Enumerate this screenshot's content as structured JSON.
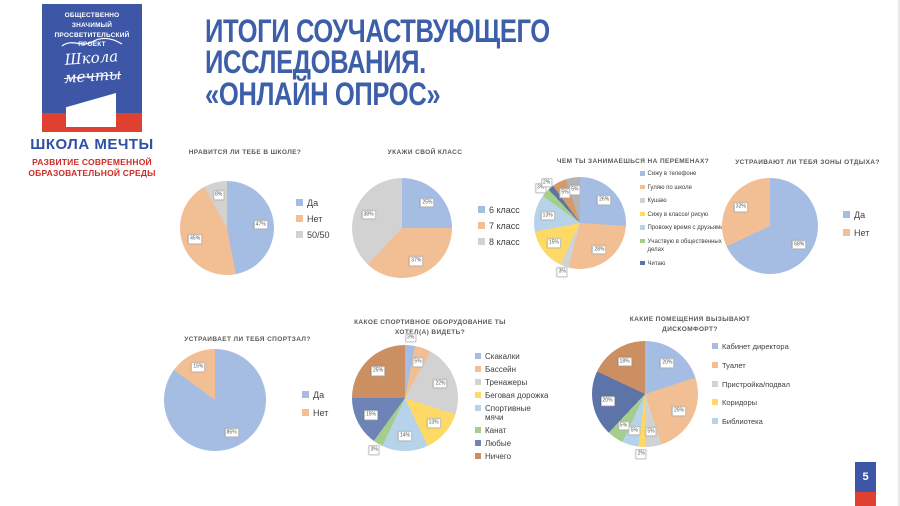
{
  "slide": {
    "title_line1": "ИТОГИ СОУЧАСТВУЮЩЕГО ИССЛЕДОВАНИЯ.",
    "title_line2": "«ОНЛАЙН ОПРОС»",
    "page_number": "5"
  },
  "logo": {
    "project_label": "ОБЩЕСТВЕННО ЗНАЧИМЫЙ ПРОСВЕТИТЕЛЬСКИЙ ПРОЕКТ",
    "script_line1": "Школа",
    "script_line2": "мечты",
    "brand": "ШКОЛА МЕЧТЫ",
    "tagline": "РАЗВИТИЕ СОВРЕМЕННОЙ ОБРАЗОВАТЕЛЬНОЙ СРЕДЫ"
  },
  "colors": {
    "accent_blue": "#3D57A6",
    "accent_red": "#E04030",
    "title_blue": "#3D5FA9",
    "brand_red": "#CE2B26"
  },
  "chart_data": [
    {
      "type": "pie",
      "title": "НРАВИТСЯ ЛИ ТЕБЕ В ШКОЛЕ?",
      "legend_position": "right",
      "slices": [
        {
          "label": "Да",
          "value": 47,
          "color": "#A6BDE3"
        },
        {
          "label": "Нет",
          "value": 45,
          "color": "#F2BE93"
        },
        {
          "label": "50/50",
          "value": 8,
          "color": "#D2D2D2"
        }
      ]
    },
    {
      "type": "pie",
      "title": "УКАЖИ СВОЙ КЛАСС",
      "legend_position": "right",
      "slices": [
        {
          "label": "6 класс",
          "value": 25,
          "color": "#A6BDE3"
        },
        {
          "label": "7 класс",
          "value": 37,
          "color": "#F2BE93"
        },
        {
          "label": "8 класс",
          "value": 38,
          "color": "#D2D2D2"
        }
      ]
    },
    {
      "type": "pie",
      "title": "ЧЕМ ТЫ ЗАНИМАЕШЬСЯ НА ПЕРЕМЕНАХ?",
      "legend_position": "right",
      "slices": [
        {
          "label": "Сижу в телефоне",
          "value": 26,
          "color": "#A6BDE3"
        },
        {
          "label": "Гуляю по школе",
          "value": 28,
          "color": "#F2BE93"
        },
        {
          "label": "Кушаю",
          "value": 3,
          "color": "#D2D2D2"
        },
        {
          "label": "Сижу в классе/ рисую",
          "value": 15,
          "color": "#FFD966"
        },
        {
          "label": "Провожу время с друзьями",
          "value": 13,
          "color": "#B7D3EA"
        },
        {
          "label": "Участвую в общественных делах",
          "value": 3,
          "color": "#A5CE8D"
        },
        {
          "label": "Читаю",
          "value": 2,
          "color": "#5C74A8"
        },
        {
          "label": "",
          "value": 5,
          "color": "#D49A6A"
        },
        {
          "label": "",
          "value": 5,
          "color": "#B3B3B3"
        }
      ]
    },
    {
      "type": "pie",
      "title": "УСТРАИВАЮТ ЛИ ТЕБЯ ЗОНЫ ОТДЫХА?",
      "legend_position": "right",
      "slices": [
        {
          "label": "Да",
          "value": 68,
          "color": "#A6BDE3"
        },
        {
          "label": "Нет",
          "value": 32,
          "color": "#F2BE93"
        }
      ]
    },
    {
      "type": "pie",
      "title": "УСТРАИВАЕТ ЛИ ТЕБЯ СПОРТЗАЛ?",
      "legend_position": "right",
      "slices": [
        {
          "label": "Да",
          "value": 85,
          "color": "#A6BDE3"
        },
        {
          "label": "Нет",
          "value": 15,
          "color": "#F2BE93"
        }
      ]
    },
    {
      "type": "pie",
      "title": "КАКОЕ СПОРТИВНОЕ ОБОРУДОВАНИЕ ТЫ ХОТЕЛ(А) ВИДЕТЬ?",
      "legend_position": "right",
      "slices": [
        {
          "label": "Скакалки",
          "value": 3,
          "color": "#A6BDE3"
        },
        {
          "label": "Бассейн",
          "value": 5,
          "color": "#F2BE93"
        },
        {
          "label": "Тренажеры",
          "value": 22,
          "color": "#D2D2D2"
        },
        {
          "label": "Беговая дорожка",
          "value": 13,
          "color": "#FFD966"
        },
        {
          "label": "Спортивные мячи",
          "value": 14,
          "color": "#B7D3EA"
        },
        {
          "label": "Канат",
          "value": 3,
          "color": "#A5CE8D"
        },
        {
          "label": "Любые",
          "value": 15,
          "color": "#6E84B7"
        },
        {
          "label": "Ничего",
          "value": 25,
          "color": "#CC8F62"
        }
      ]
    },
    {
      "type": "pie",
      "title": "КАКИЕ ПОМЕЩЕНИЯ ВЫЗЫВАЮТ ДИСКОМФОРТ?",
      "legend_position": "right",
      "slices": [
        {
          "label": "Кабинет директора",
          "value": 20,
          "color": "#A6BDE3"
        },
        {
          "label": "Туалет",
          "value": 25,
          "color": "#F2BE93"
        },
        {
          "label": "Пристройка/подвал",
          "value": 5,
          "color": "#D2D2D2"
        },
        {
          "label": "Коридоры",
          "value": 2,
          "color": "#FFD966"
        },
        {
          "label": "Библиотека",
          "value": 5,
          "color": "#B7D3EA"
        },
        {
          "label": "",
          "value": 5,
          "color": "#A5CE8D"
        },
        {
          "label": "",
          "value": 20,
          "color": "#5C74A8"
        },
        {
          "label": "",
          "value": 18,
          "color": "#CC8F62"
        }
      ]
    }
  ]
}
